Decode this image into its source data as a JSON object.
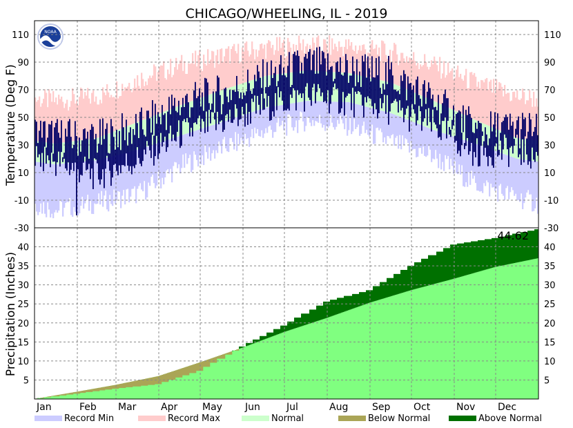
{
  "chart_data": {
    "type": "area",
    "title": "CHICAGO/WHEELING, IL - 2019",
    "months": [
      "Jan",
      "Feb",
      "Mar",
      "Apr",
      "May",
      "Jun",
      "Jul",
      "Aug",
      "Sep",
      "Oct",
      "Nov",
      "Dec"
    ],
    "temperature": {
      "ylabel": "Temperature (Deg F)",
      "ylim": [
        -30,
        120
      ],
      "ticks": [
        110,
        90,
        70,
        50,
        30,
        10,
        -10,
        -30
      ],
      "normal_high_monthly": [
        31,
        35,
        47,
        59,
        70,
        80,
        84,
        82,
        75,
        62,
        48,
        35
      ],
      "normal_low_monthly": [
        16,
        19,
        27,
        37,
        47,
        57,
        62,
        61,
        53,
        41,
        31,
        20
      ],
      "record_max_monthly": [
        62,
        65,
        78,
        88,
        95,
        100,
        102,
        101,
        97,
        88,
        75,
        65
      ],
      "record_min_monthly": [
        -17,
        -12,
        -5,
        15,
        28,
        40,
        48,
        44,
        32,
        22,
        2,
        -8
      ],
      "observed_high_monthly": [
        36,
        34,
        42,
        60,
        67,
        78,
        88,
        84,
        80,
        62,
        40,
        42
      ],
      "observed_low_monthly": [
        18,
        8,
        20,
        38,
        47,
        58,
        66,
        62,
        56,
        44,
        25,
        26
      ],
      "observed_extremes": {
        "min": -21,
        "max": 96
      }
    },
    "precipitation": {
      "ylabel": "Precipitation (Inches)",
      "ylim": [
        0,
        45
      ],
      "ticks": [
        40,
        35,
        30,
        25,
        20,
        15,
        10,
        5
      ],
      "total_label": "44.62",
      "observed_cumulative_by_month_end": [
        1.4,
        2.7,
        3.9,
        7.4,
        13.8,
        19.3,
        25.6,
        28.6,
        35.0,
        40.6,
        42.3,
        44.62
      ],
      "normal_cumulative_by_month_end": [
        1.9,
        3.7,
        6.0,
        9.6,
        13.5,
        17.6,
        21.3,
        25.3,
        28.6,
        31.6,
        34.7,
        37.0
      ]
    },
    "legend": [
      {
        "label": "Record Min",
        "color": "#ccccff"
      },
      {
        "label": "Record Max",
        "color": "#ffcccc"
      },
      {
        "label": "Normal",
        "color": "#ccffcc"
      },
      {
        "label": "Below Normal",
        "color": "#aaa556"
      },
      {
        "label": "Above Normal",
        "color": "#007000"
      }
    ],
    "colors": {
      "observed_temp": "#000066",
      "normal_precip": "#80ff80",
      "above_normal": "#007000",
      "below_normal": "#aaa556",
      "grid": "#888888"
    },
    "logo": "NOAA"
  }
}
